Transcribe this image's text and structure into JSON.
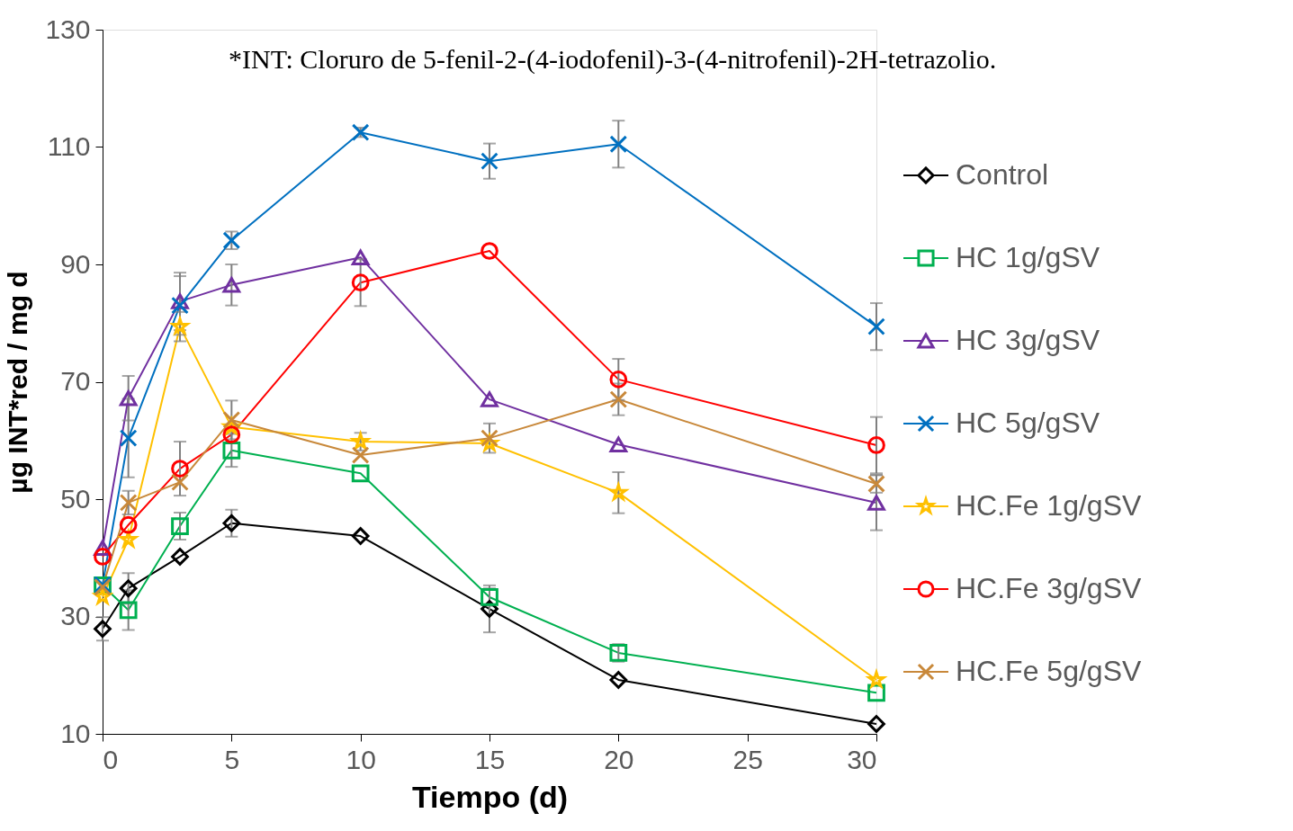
{
  "chart_data": {
    "type": "line",
    "xlabel": "Tiempo (d)",
    "ylabel": "µg INT*red / mg d",
    "annotations": [
      "*INT: Cloruro de 5-fenil-2-(4-iodofenil)-3-(4-nitrofenil)-2H-tetrazolio."
    ],
    "x": [
      0,
      1,
      3,
      5,
      10,
      15,
      20,
      30
    ],
    "xlim": [
      0,
      30
    ],
    "xticks": [
      0,
      5,
      10,
      15,
      20,
      25,
      30
    ],
    "ylim": [
      10,
      130
    ],
    "yticks": [
      10,
      30,
      50,
      70,
      90,
      110,
      130
    ],
    "grid": false,
    "legend": "right",
    "line_style": "solid",
    "series": [
      {
        "name": "Control",
        "color": "#000000",
        "marker": "diamond",
        "values": [
          27.9,
          34.8,
          40.2,
          45.9,
          43.7,
          31.3,
          19.2,
          11.7
        ],
        "errors": [
          2,
          2.6,
          null,
          2.3,
          null,
          4,
          null,
          null
        ]
      },
      {
        "name": "HC 1g/gSV",
        "color": "#00b050",
        "marker": "square",
        "values": [
          35.3,
          31.1,
          45.4,
          58.3,
          54.4,
          33.3,
          23.8,
          17.0
        ],
        "errors": [
          null,
          3.4,
          2.3,
          2.8,
          null,
          1.5,
          1.5,
          null
        ]
      },
      {
        "name": "HC 3g/gSV",
        "color": "#7030a0",
        "marker": "triangle",
        "values": [
          41.7,
          67.2,
          83.7,
          86.5,
          91.2,
          67.0,
          59.3,
          49.4
        ],
        "errors": [
          null,
          3.8,
          4.9,
          3.5,
          null,
          null,
          null,
          4.7
        ]
      },
      {
        "name": "HC 5g/gSV",
        "color": "#0070c0",
        "marker": "cross",
        "values": [
          35.4,
          60.4,
          83.0,
          94.1,
          112.5,
          107.6,
          110.5,
          79.4
        ],
        "errors": [
          null,
          6.7,
          5,
          1.5,
          0.8,
          3,
          4,
          4
        ]
      },
      {
        "name": "HC.Fe 1g/gSV",
        "color": "#ffc000",
        "marker": "star",
        "values": [
          33.4,
          43.1,
          79.4,
          62.3,
          59.8,
          59.5,
          51.1,
          19.2
        ],
        "errors": [
          null,
          null,
          2.5,
          null,
          1.5,
          null,
          3.5,
          null
        ]
      },
      {
        "name": "HC.Fe 3g/gSV",
        "color": "#ff0000",
        "marker": "circle",
        "values": [
          40.2,
          45.6,
          55.2,
          61.0,
          86.9,
          92.3,
          70.4,
          59.2
        ],
        "errors": [
          null,
          null,
          4.6,
          null,
          4,
          null,
          3.5,
          4.8
        ]
      },
      {
        "name": "HC.Fe 5g/gSV",
        "color": "#c8883a",
        "marker": "cross",
        "values": [
          35.0,
          49.4,
          52.9,
          63.5,
          57.5,
          60.4,
          67.0,
          52.6
        ],
        "errors": [
          null,
          2,
          null,
          3.3,
          null,
          2.5,
          2.7,
          1.5
        ]
      }
    ]
  }
}
